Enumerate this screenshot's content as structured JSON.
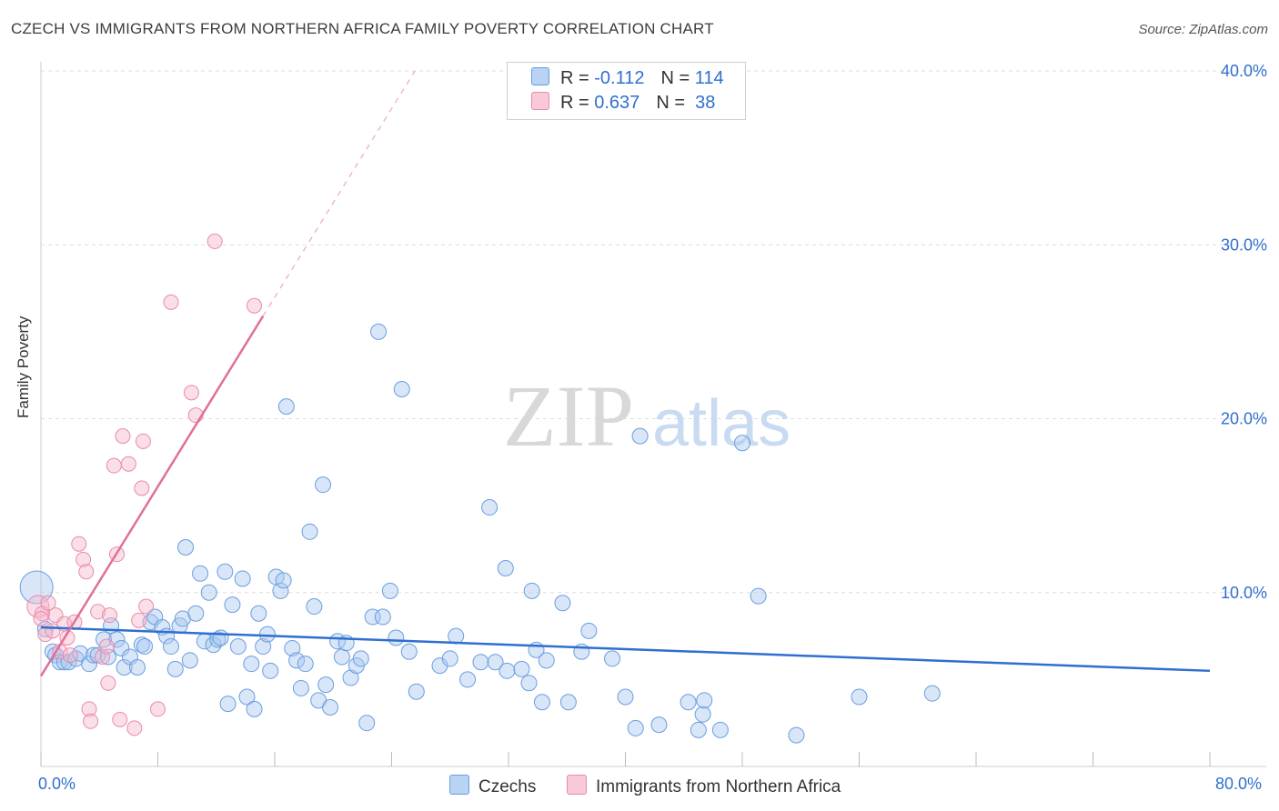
{
  "title": "CZECH VS IMMIGRANTS FROM NORTHERN AFRICA FAMILY POVERTY CORRELATION CHART",
  "source": "Source: ZipAtlas.com",
  "watermark": {
    "zip": "ZIP",
    "atlas": "atlas"
  },
  "legend": {
    "row1": {
      "r_label": "R = ",
      "r_value": "-0.112",
      "n_label": "N = ",
      "n_value": "114"
    },
    "row2": {
      "r_label": "R = ",
      "r_value": "0.637",
      "n_label": "N = ",
      "n_value": " 38"
    }
  },
  "x_labels": {
    "min": "0.0%",
    "max": "80.0%"
  },
  "colors": {
    "blue": "#2f6fd0",
    "blue_fill": "#a9c8ef",
    "pink": "#e0709a",
    "pink_fill": "#f6b9cc",
    "grid": "#dddddd",
    "axis_text": "#2f6fd0"
  },
  "chart_data": {
    "type": "scatter",
    "title": "CZECH VS IMMIGRANTS FROM NORTHERN AFRICA FAMILY POVERTY CORRELATION CHART",
    "xlabel": "",
    "ylabel": "Family Poverty",
    "xlim": [
      0,
      80
    ],
    "ylim": [
      0,
      40
    ],
    "y_ticks": [
      10,
      20,
      30,
      40
    ],
    "y_tick_labels": [
      "10.0%",
      "20.0%",
      "30.0%",
      "40.0%"
    ],
    "grid": true,
    "legend_position": "top-center",
    "series": [
      {
        "name": "Czechs",
        "color": "#2f6fd0",
        "R": -0.112,
        "N": 114,
        "trend": {
          "x": [
            0,
            80
          ],
          "y": [
            8.0,
            5.5
          ]
        },
        "points": [
          [
            -0.3,
            10.3
          ],
          [
            0.3,
            7.9
          ],
          [
            0.8,
            6.6
          ],
          [
            1.0,
            6.4
          ],
          [
            1.3,
            6.0
          ],
          [
            1.6,
            6.0
          ],
          [
            1.9,
            6.0
          ],
          [
            2.4,
            6.2
          ],
          [
            2.7,
            6.5
          ],
          [
            3.3,
            5.9
          ],
          [
            3.6,
            6.4
          ],
          [
            3.9,
            6.4
          ],
          [
            4.3,
            7.3
          ],
          [
            4.6,
            6.3
          ],
          [
            4.8,
            8.1
          ],
          [
            5.2,
            7.3
          ],
          [
            5.5,
            6.8
          ],
          [
            5.7,
            5.7
          ],
          [
            6.1,
            6.3
          ],
          [
            6.6,
            5.7
          ],
          [
            6.9,
            7.0
          ],
          [
            7.1,
            6.9
          ],
          [
            7.5,
            8.3
          ],
          [
            7.8,
            8.6
          ],
          [
            8.3,
            8.0
          ],
          [
            8.6,
            7.5
          ],
          [
            8.9,
            6.9
          ],
          [
            9.2,
            5.6
          ],
          [
            9.5,
            8.1
          ],
          [
            9.7,
            8.5
          ],
          [
            9.9,
            12.6
          ],
          [
            10.2,
            6.1
          ],
          [
            10.6,
            8.8
          ],
          [
            10.9,
            11.1
          ],
          [
            11.2,
            7.2
          ],
          [
            11.5,
            10.0
          ],
          [
            11.8,
            7.0
          ],
          [
            12.1,
            7.3
          ],
          [
            12.3,
            7.4
          ],
          [
            12.6,
            11.2
          ],
          [
            12.8,
            3.6
          ],
          [
            13.1,
            9.3
          ],
          [
            13.5,
            6.9
          ],
          [
            13.8,
            10.8
          ],
          [
            14.1,
            4.0
          ],
          [
            14.4,
            5.9
          ],
          [
            14.6,
            3.3
          ],
          [
            14.9,
            8.8
          ],
          [
            15.2,
            6.9
          ],
          [
            15.5,
            7.6
          ],
          [
            15.7,
            5.5
          ],
          [
            16.1,
            10.9
          ],
          [
            16.4,
            10.1
          ],
          [
            16.6,
            10.7
          ],
          [
            16.8,
            20.7
          ],
          [
            17.2,
            6.8
          ],
          [
            17.5,
            6.1
          ],
          [
            17.8,
            4.5
          ],
          [
            18.1,
            5.9
          ],
          [
            18.4,
            13.5
          ],
          [
            18.7,
            9.2
          ],
          [
            19.0,
            3.8
          ],
          [
            19.3,
            16.2
          ],
          [
            19.5,
            4.7
          ],
          [
            19.8,
            3.4
          ],
          [
            20.3,
            7.2
          ],
          [
            20.6,
            6.3
          ],
          [
            20.9,
            7.1
          ],
          [
            21.2,
            5.1
          ],
          [
            21.6,
            5.8
          ],
          [
            21.9,
            6.2
          ],
          [
            22.3,
            2.5
          ],
          [
            22.7,
            8.6
          ],
          [
            23.1,
            25.0
          ],
          [
            23.4,
            8.6
          ],
          [
            23.9,
            10.1
          ],
          [
            24.3,
            7.4
          ],
          [
            24.7,
            21.7
          ],
          [
            25.2,
            6.6
          ],
          [
            25.7,
            4.3
          ],
          [
            27.3,
            5.8
          ],
          [
            28.0,
            6.2
          ],
          [
            28.4,
            7.5
          ],
          [
            29.2,
            5.0
          ],
          [
            30.1,
            6.0
          ],
          [
            30.7,
            14.9
          ],
          [
            31.1,
            6.0
          ],
          [
            31.8,
            11.4
          ],
          [
            31.9,
            5.5
          ],
          [
            32.9,
            5.6
          ],
          [
            33.4,
            4.8
          ],
          [
            33.6,
            10.1
          ],
          [
            33.9,
            6.7
          ],
          [
            34.3,
            3.7
          ],
          [
            34.6,
            6.1
          ],
          [
            35.7,
            9.4
          ],
          [
            36.1,
            3.7
          ],
          [
            37.0,
            6.6
          ],
          [
            37.5,
            7.8
          ],
          [
            39.1,
            6.2
          ],
          [
            40.0,
            4.0
          ],
          [
            40.7,
            2.2
          ],
          [
            41.0,
            19.0
          ],
          [
            42.3,
            2.4
          ],
          [
            44.3,
            3.7
          ],
          [
            45.0,
            2.1
          ],
          [
            45.3,
            3.0
          ],
          [
            45.4,
            3.8
          ],
          [
            46.5,
            2.1
          ],
          [
            48.0,
            18.6
          ],
          [
            49.1,
            9.8
          ],
          [
            51.7,
            1.8
          ],
          [
            56.0,
            4.0
          ],
          [
            61.0,
            4.2
          ]
        ]
      },
      {
        "name": "Immigrants from Northern Africa",
        "color": "#e0709a",
        "R": 0.637,
        "N": 38,
        "trend": {
          "x": [
            0,
            15.2
          ],
          "y": [
            5.2,
            25.9
          ]
        },
        "trend_dashed": {
          "x": [
            15.2,
            25.6
          ],
          "y": [
            25.9,
            40.0
          ]
        },
        "points": [
          [
            -0.2,
            9.2
          ],
          [
            0.1,
            8.8
          ],
          [
            0.3,
            7.6
          ],
          [
            0.5,
            9.4
          ],
          [
            0.8,
            7.8
          ],
          [
            1.0,
            8.7
          ],
          [
            1.3,
            6.6
          ],
          [
            1.6,
            8.2
          ],
          [
            1.8,
            7.4
          ],
          [
            2.0,
            6.4
          ],
          [
            2.3,
            8.3
          ],
          [
            2.6,
            12.8
          ],
          [
            2.9,
            11.9
          ],
          [
            3.1,
            11.2
          ],
          [
            3.3,
            3.3
          ],
          [
            3.4,
            2.6
          ],
          [
            3.9,
            8.9
          ],
          [
            4.2,
            6.3
          ],
          [
            4.5,
            6.9
          ],
          [
            4.6,
            4.8
          ],
          [
            4.7,
            8.7
          ],
          [
            5.0,
            17.3
          ],
          [
            5.2,
            12.2
          ],
          [
            5.4,
            2.7
          ],
          [
            5.6,
            19.0
          ],
          [
            6.0,
            17.4
          ],
          [
            6.4,
            2.2
          ],
          [
            6.7,
            8.4
          ],
          [
            6.9,
            16.0
          ],
          [
            7.0,
            18.7
          ],
          [
            7.2,
            9.2
          ],
          [
            8.0,
            3.3
          ],
          [
            8.9,
            26.7
          ],
          [
            10.3,
            21.5
          ],
          [
            10.6,
            20.2
          ],
          [
            11.9,
            30.2
          ],
          [
            14.6,
            26.5
          ],
          [
            0.0,
            8.5
          ]
        ]
      }
    ]
  }
}
